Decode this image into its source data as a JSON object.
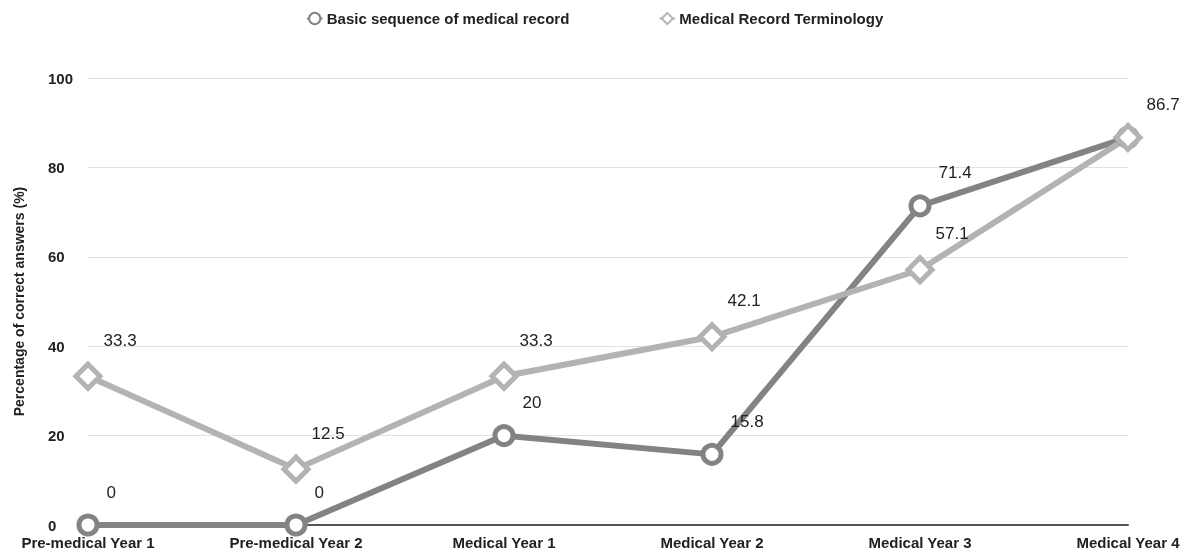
{
  "chart_data": {
    "type": "line",
    "ylabel": "Percentage of correct answers (%)",
    "categories": [
      "Pre-medical Year 1",
      "Pre-medical Year 2",
      "Medical Year 1",
      "Medical Year 2",
      "Medical Year 3",
      "Medical Year 4"
    ],
    "series": [
      {
        "name": "Basic sequence of medical record",
        "color": "#838383",
        "marker": "circle",
        "values": [
          0,
          0,
          20,
          15.8,
          71.4,
          86.7
        ],
        "value_labels": [
          "0",
          "0",
          "20",
          "15.8",
          "71.4",
          "86.7"
        ]
      },
      {
        "name": "Medical Record Terminology",
        "color": "#b3b3b3",
        "marker": "diamond",
        "values": [
          33.3,
          12.5,
          33.3,
          42.1,
          57.1,
          86.7
        ],
        "value_labels": [
          "33.3",
          "12.5",
          "33.3",
          "42.1",
          "57.1",
          null
        ]
      }
    ],
    "ylim": [
      0,
      100
    ],
    "yticks": [
      0,
      20,
      40,
      60,
      80,
      100
    ],
    "grid": "y",
    "legend": "top",
    "line_style": "solid"
  }
}
